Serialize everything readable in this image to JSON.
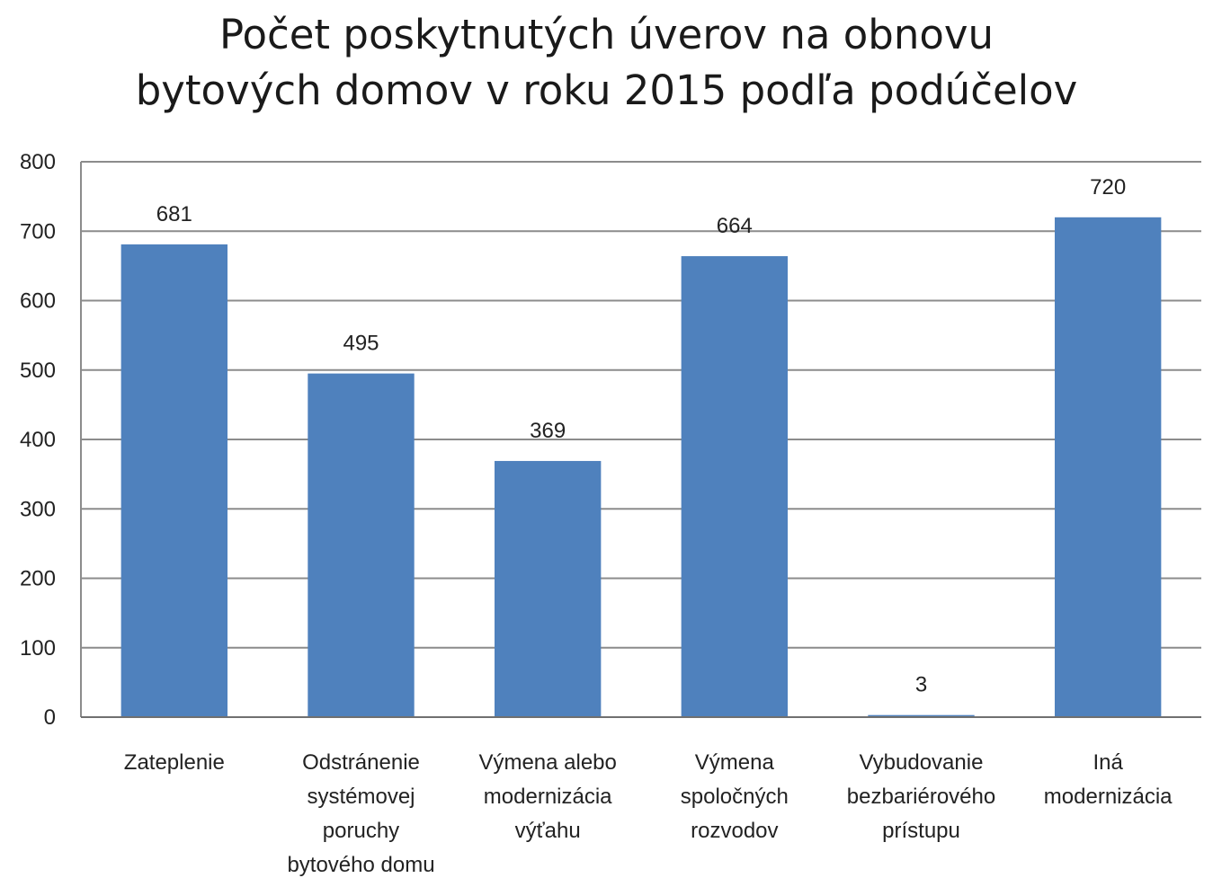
{
  "chart_data": {
    "type": "bar",
    "title_lines": [
      "Počet poskytnutých úverov na obnovu",
      "bytových domov v roku 2015 podľa podúčelov"
    ],
    "categories": [
      [
        "Zateplenie"
      ],
      [
        "Odstránenie",
        "systémovej",
        "poruchy",
        "bytového domu"
      ],
      [
        "Výmena alebo",
        "modernizácia",
        "výťahu"
      ],
      [
        "Výmena",
        "spoločných",
        "rozvodov"
      ],
      [
        "Vybudovanie",
        "bezbariérového",
        "prístupu"
      ],
      [
        "Iná",
        "modernizácia"
      ]
    ],
    "values": [
      681,
      495,
      369,
      664,
      3,
      720
    ],
    "yticks": [
      0,
      100,
      200,
      300,
      400,
      500,
      600,
      700,
      800
    ],
    "ylim": [
      0,
      800
    ],
    "grid": true,
    "legend": "none",
    "bar_color": "#4f81bd",
    "grid_color": "#8c8c8c"
  }
}
